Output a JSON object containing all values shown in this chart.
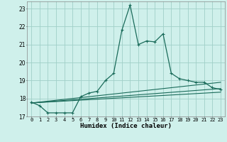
{
  "xlabel": "Humidex (Indice chaleur)",
  "bg_color": "#cff0eb",
  "grid_color": "#a0cfc8",
  "line_color": "#1a6b5a",
  "xlim": [
    -0.5,
    23.5
  ],
  "ylim": [
    17,
    23.4
  ],
  "yticks": [
    17,
    18,
    19,
    20,
    21,
    22,
    23
  ],
  "xticks": [
    0,
    1,
    2,
    3,
    4,
    5,
    6,
    7,
    8,
    9,
    10,
    11,
    12,
    13,
    14,
    15,
    16,
    17,
    18,
    19,
    20,
    21,
    22,
    23
  ],
  "main_x": [
    0,
    1,
    2,
    3,
    4,
    5,
    6,
    7,
    8,
    9,
    10,
    11,
    12,
    13,
    14,
    15,
    16,
    17,
    18,
    19,
    20,
    21,
    22,
    23
  ],
  "main_y": [
    17.8,
    17.6,
    17.2,
    17.2,
    17.2,
    17.2,
    18.1,
    18.3,
    18.4,
    19.0,
    19.4,
    21.8,
    23.2,
    21.0,
    21.2,
    21.15,
    21.6,
    19.4,
    19.1,
    19.0,
    18.9,
    18.9,
    18.6,
    18.5
  ],
  "line2_x": [
    0,
    23
  ],
  "line2_y": [
    17.75,
    18.9
  ],
  "line3_x": [
    0,
    23
  ],
  "line3_y": [
    17.75,
    18.55
  ],
  "line4_x": [
    0,
    23
  ],
  "line4_y": [
    17.75,
    18.35
  ]
}
